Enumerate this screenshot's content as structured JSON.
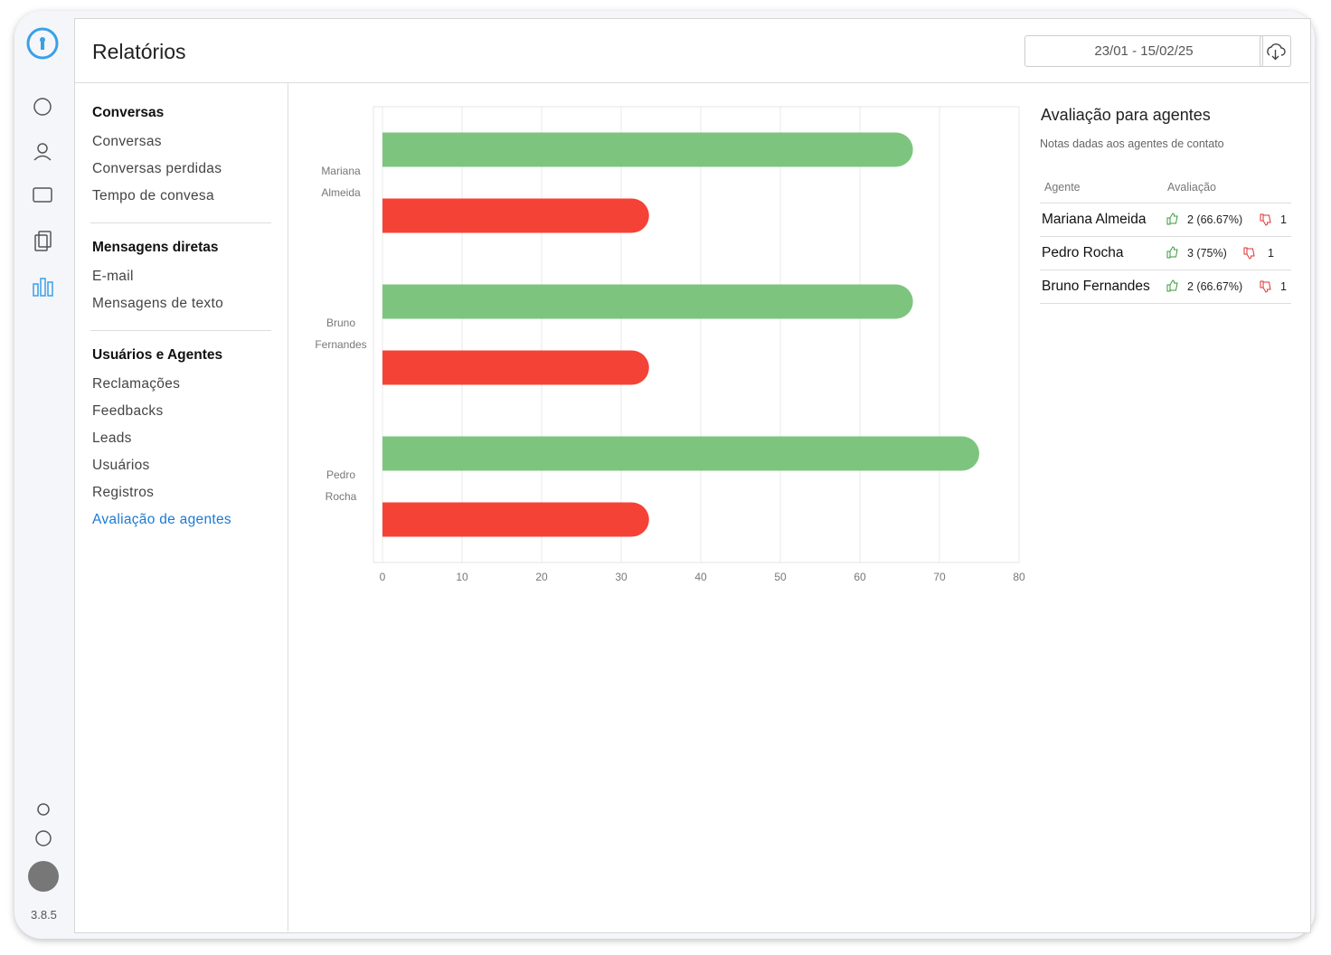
{
  "header": {
    "title": "Relatórios",
    "date_range": "23/01 - 15/02/25"
  },
  "sidebar": {
    "version": "3.8.5"
  },
  "nav": {
    "sections": [
      {
        "title": "Conversas",
        "items": [
          {
            "label": "Conversas"
          },
          {
            "label": "Conversas perdidas"
          },
          {
            "label": "Tempo de convesa"
          }
        ]
      },
      {
        "title": "Mensagens diretas",
        "items": [
          {
            "label": "E-mail"
          },
          {
            "label": "Mensagens de texto"
          }
        ]
      },
      {
        "title": "Usuários e Agentes",
        "items": [
          {
            "label": "Reclamações"
          },
          {
            "label": "Feedbacks"
          },
          {
            "label": "Leads"
          },
          {
            "label": "Usuários"
          },
          {
            "label": "Registros"
          },
          {
            "label": "Avaliação de agentes",
            "active": true
          }
        ]
      }
    ]
  },
  "chart_data": {
    "type": "bar",
    "orientation": "horizontal",
    "categories": [
      "Mariana Almeida",
      "Bruno Fernandes",
      "Pedro Rocha"
    ],
    "series": [
      {
        "color": "#7dc57f",
        "values": [
          66.67,
          66.67,
          75
        ]
      },
      {
        "color": "#f44336",
        "values": [
          33.5,
          33.5,
          33.5
        ]
      }
    ],
    "xlim": [
      0,
      80
    ],
    "xticks": [
      0,
      10,
      20,
      30,
      40,
      50,
      60,
      70,
      80
    ],
    "grid": true
  },
  "panel": {
    "title": "Avaliação para agentes",
    "subtitle": "Notas dadas aos agentes de contato"
  },
  "table": {
    "columns": [
      "Agente",
      "Avaliação"
    ],
    "rows": [
      [
        "Mariana Almeida",
        "2 (66.67%)",
        "1"
      ],
      [
        "Pedro Rocha",
        "3 (75%)",
        "1"
      ],
      [
        "Bruno Fernandes",
        "2 (66.67%)",
        "1"
      ]
    ]
  }
}
